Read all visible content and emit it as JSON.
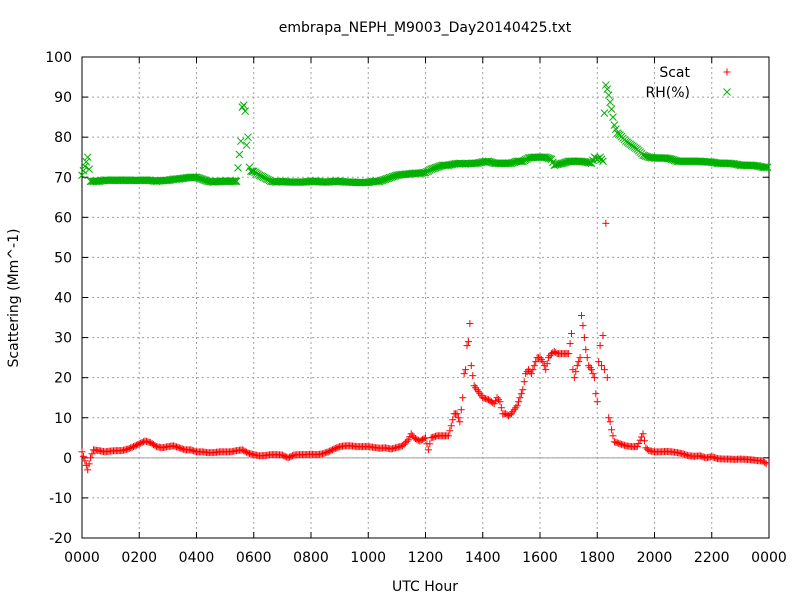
{
  "chart_data": {
    "type": "scatter",
    "title": "embrapa_NEPH_M9003_Day20140425.txt",
    "xlabel": "UTC Hour",
    "ylabel": "Scattering (Mm^-1)",
    "xlim": [
      0,
      2400
    ],
    "ylim": [
      -20,
      100
    ],
    "grid": true,
    "legend_position": "top-right",
    "x_ticks": [
      "0000",
      "0200",
      "0400",
      "0600",
      "0800",
      "1000",
      "1200",
      "1400",
      "1600",
      "1800",
      "2000",
      "2200",
      "0000"
    ],
    "y_ticks": [
      "-20",
      "-10",
      "0",
      "10",
      "20",
      "30",
      "40",
      "50",
      "60",
      "70",
      "80",
      "90",
      "100"
    ],
    "series": [
      {
        "name": "Scat",
        "marker": "+",
        "color": "#ff0000",
        "points": [
          [
            0,
            1.5
          ],
          [
            20,
            -3
          ],
          [
            30,
            0
          ],
          [
            40,
            2
          ],
          [
            60,
            1.8
          ],
          [
            80,
            1.5
          ],
          [
            100,
            1.7
          ],
          [
            120,
            1.8
          ],
          [
            140,
            1.8
          ],
          [
            160,
            2.2
          ],
          [
            180,
            2.8
          ],
          [
            200,
            3.5
          ],
          [
            220,
            4.2
          ],
          [
            240,
            3.8
          ],
          [
            260,
            2.8
          ],
          [
            280,
            2.5
          ],
          [
            300,
            2.8
          ],
          [
            320,
            3
          ],
          [
            340,
            2.5
          ],
          [
            360,
            2
          ],
          [
            380,
            2
          ],
          [
            400,
            1.5
          ],
          [
            420,
            1.5
          ],
          [
            440,
            1.3
          ],
          [
            460,
            1.3
          ],
          [
            480,
            1.5
          ],
          [
            500,
            1.5
          ],
          [
            520,
            1.5
          ],
          [
            540,
            1.8
          ],
          [
            560,
            2
          ],
          [
            580,
            1.2
          ],
          [
            600,
            0.8
          ],
          [
            620,
            0.5
          ],
          [
            640,
            0.6
          ],
          [
            660,
            0.8
          ],
          [
            680,
            0.8
          ],
          [
            700,
            0.7
          ],
          [
            720,
            0
          ],
          [
            740,
            0.7
          ],
          [
            760,
            0.8
          ],
          [
            780,
            0.8
          ],
          [
            800,
            0.9
          ],
          [
            820,
            0.8
          ],
          [
            840,
            1
          ],
          [
            860,
            1.5
          ],
          [
            880,
            2.2
          ],
          [
            900,
            2.8
          ],
          [
            920,
            3
          ],
          [
            940,
            3
          ],
          [
            960,
            2.8
          ],
          [
            980,
            2.8
          ],
          [
            1000,
            2.8
          ],
          [
            1020,
            2.6
          ],
          [
            1040,
            2.4
          ],
          [
            1060,
            2.5
          ],
          [
            1080,
            2.2
          ],
          [
            1100,
            2.6
          ],
          [
            1120,
            3
          ],
          [
            1140,
            4.5
          ],
          [
            1150,
            6
          ],
          [
            1160,
            5
          ],
          [
            1180,
            4.2
          ],
          [
            1200,
            5
          ],
          [
            1210,
            2
          ],
          [
            1220,
            5
          ],
          [
            1240,
            5.5
          ],
          [
            1260,
            5.5
          ],
          [
            1280,
            5.5
          ],
          [
            1290,
            8
          ],
          [
            1300,
            11
          ],
          [
            1310,
            11
          ],
          [
            1320,
            9
          ],
          [
            1330,
            15
          ],
          [
            1335,
            21
          ],
          [
            1340,
            22
          ],
          [
            1345,
            28
          ],
          [
            1350,
            29
          ],
          [
            1355,
            33.5
          ],
          [
            1360,
            23
          ],
          [
            1370,
            18
          ],
          [
            1380,
            17
          ],
          [
            1390,
            16
          ],
          [
            1400,
            15
          ],
          [
            1420,
            14.5
          ],
          [
            1440,
            13.5
          ],
          [
            1450,
            15
          ],
          [
            1460,
            14
          ],
          [
            1470,
            11
          ],
          [
            1480,
            11
          ],
          [
            1490,
            10.5
          ],
          [
            1500,
            11
          ],
          [
            1510,
            12
          ],
          [
            1520,
            13
          ],
          [
            1530,
            15
          ],
          [
            1540,
            17
          ],
          [
            1550,
            21
          ],
          [
            1560,
            22
          ],
          [
            1570,
            21
          ],
          [
            1580,
            23
          ],
          [
            1590,
            25
          ],
          [
            1600,
            25
          ],
          [
            1610,
            24
          ],
          [
            1620,
            22
          ],
          [
            1630,
            25
          ],
          [
            1640,
            26
          ],
          [
            1650,
            26.5
          ],
          [
            1660,
            26
          ],
          [
            1680,
            26
          ],
          [
            1700,
            26
          ],
          [
            1710,
            31
          ],
          [
            1715,
            22
          ],
          [
            1720,
            20
          ],
          [
            1730,
            23
          ],
          [
            1740,
            25
          ],
          [
            1745,
            35.5
          ],
          [
            1750,
            33
          ],
          [
            1760,
            27
          ],
          [
            1770,
            23
          ],
          [
            1780,
            22
          ],
          [
            1790,
            20
          ],
          [
            1795,
            16
          ],
          [
            1800,
            14
          ],
          [
            1805,
            24
          ],
          [
            1810,
            28
          ],
          [
            1815,
            23
          ],
          [
            1820,
            30.5
          ],
          [
            1825,
            22
          ],
          [
            1830,
            58.5
          ],
          [
            1835,
            20
          ],
          [
            1840,
            10
          ],
          [
            1845,
            9
          ],
          [
            1850,
            7
          ],
          [
            1860,
            4
          ],
          [
            1880,
            3.5
          ],
          [
            1900,
            3
          ],
          [
            1920,
            2.8
          ],
          [
            1940,
            2.8
          ],
          [
            1960,
            6
          ],
          [
            1970,
            2.5
          ],
          [
            1980,
            1.8
          ],
          [
            2000,
            1.5
          ],
          [
            2020,
            1.5
          ],
          [
            2040,
            1.6
          ],
          [
            2060,
            1.5
          ],
          [
            2080,
            1.3
          ],
          [
            2100,
            1
          ],
          [
            2120,
            0.5
          ],
          [
            2140,
            0.4
          ],
          [
            2160,
            0.5
          ],
          [
            2180,
            0
          ],
          [
            2200,
            0.3
          ],
          [
            2220,
            -0.2
          ],
          [
            2240,
            -0.3
          ],
          [
            2260,
            -0.3
          ],
          [
            2280,
            -0.4
          ],
          [
            2300,
            -0.3
          ],
          [
            2320,
            -0.4
          ],
          [
            2340,
            -0.5
          ],
          [
            2360,
            -0.7
          ],
          [
            2380,
            -0.8
          ],
          [
            2390,
            -1.5
          ]
        ]
      },
      {
        "name": "RH(%)",
        "marker": "x",
        "color": "#00b000",
        "points": [
          [
            0,
            70.5
          ],
          [
            20,
            75
          ],
          [
            30,
            69
          ],
          [
            40,
            69
          ],
          [
            60,
            69
          ],
          [
            80,
            69.3
          ],
          [
            100,
            69.2
          ],
          [
            120,
            69.3
          ],
          [
            140,
            69.2
          ],
          [
            160,
            69.3
          ],
          [
            180,
            69.2
          ],
          [
            200,
            69.2
          ],
          [
            220,
            69.3
          ],
          [
            240,
            69.2
          ],
          [
            260,
            69
          ],
          [
            280,
            69.2
          ],
          [
            300,
            69.2
          ],
          [
            320,
            69.5
          ],
          [
            340,
            69.6
          ],
          [
            360,
            69.8
          ],
          [
            380,
            70
          ],
          [
            400,
            70
          ],
          [
            420,
            69.5
          ],
          [
            440,
            69
          ],
          [
            460,
            68.8
          ],
          [
            480,
            69
          ],
          [
            500,
            69
          ],
          [
            520,
            69
          ],
          [
            540,
            69
          ],
          [
            555,
            79
          ],
          [
            560,
            87.5
          ],
          [
            565,
            88
          ],
          [
            570,
            86.5
          ],
          [
            575,
            78
          ],
          [
            580,
            80
          ],
          [
            585,
            72.5
          ],
          [
            590,
            71.5
          ],
          [
            600,
            71.5
          ],
          [
            620,
            70.5
          ],
          [
            640,
            69.8
          ],
          [
            660,
            69
          ],
          [
            680,
            68.8
          ],
          [
            700,
            69
          ],
          [
            720,
            68.8
          ],
          [
            740,
            68.8
          ],
          [
            760,
            68.8
          ],
          [
            780,
            68.8
          ],
          [
            800,
            69
          ],
          [
            820,
            69
          ],
          [
            840,
            68.8
          ],
          [
            860,
            68.8
          ],
          [
            880,
            69
          ],
          [
            900,
            69
          ],
          [
            920,
            68.8
          ],
          [
            940,
            68.8
          ],
          [
            960,
            68.7
          ],
          [
            980,
            68.7
          ],
          [
            1000,
            68.7
          ],
          [
            1020,
            69
          ],
          [
            1040,
            69
          ],
          [
            1060,
            69.5
          ],
          [
            1080,
            70
          ],
          [
            1100,
            70.5
          ],
          [
            1120,
            70.7
          ],
          [
            1140,
            70.8
          ],
          [
            1160,
            71
          ],
          [
            1180,
            71
          ],
          [
            1200,
            71.2
          ],
          [
            1220,
            72
          ],
          [
            1240,
            72.5
          ],
          [
            1260,
            73
          ],
          [
            1280,
            73
          ],
          [
            1300,
            73.3
          ],
          [
            1320,
            73.5
          ],
          [
            1340,
            73.3
          ],
          [
            1360,
            73.5
          ],
          [
            1380,
            73.5
          ],
          [
            1400,
            73.8
          ],
          [
            1420,
            74
          ],
          [
            1440,
            73.5
          ],
          [
            1460,
            73.5
          ],
          [
            1480,
            73.5
          ],
          [
            1500,
            73.5
          ],
          [
            1520,
            74
          ],
          [
            1540,
            74
          ],
          [
            1560,
            74.8
          ],
          [
            1580,
            75
          ],
          [
            1600,
            75
          ],
          [
            1620,
            75
          ],
          [
            1640,
            74.5
          ],
          [
            1650,
            73
          ],
          [
            1660,
            73.2
          ],
          [
            1680,
            73.5
          ],
          [
            1700,
            74
          ],
          [
            1720,
            74
          ],
          [
            1740,
            74
          ],
          [
            1760,
            73.8
          ],
          [
            1780,
            73.5
          ],
          [
            1790,
            75
          ],
          [
            1800,
            74.5
          ],
          [
            1810,
            75
          ],
          [
            1820,
            74
          ],
          [
            1825,
            86
          ],
          [
            1830,
            93
          ],
          [
            1835,
            92
          ],
          [
            1840,
            90.5
          ],
          [
            1850,
            87
          ],
          [
            1860,
            83
          ],
          [
            1870,
            81
          ],
          [
            1880,
            80.5
          ],
          [
            1900,
            79
          ],
          [
            1920,
            78
          ],
          [
            1940,
            77
          ],
          [
            1960,
            75.5
          ],
          [
            1980,
            75
          ],
          [
            2000,
            74.8
          ],
          [
            2020,
            74.8
          ],
          [
            2040,
            74.8
          ],
          [
            2060,
            74.5
          ],
          [
            2080,
            74
          ],
          [
            2100,
            74
          ],
          [
            2120,
            74
          ],
          [
            2140,
            74
          ],
          [
            2160,
            74
          ],
          [
            2180,
            73.8
          ],
          [
            2200,
            73.8
          ],
          [
            2220,
            73.5
          ],
          [
            2240,
            73.5
          ],
          [
            2260,
            73.5
          ],
          [
            2280,
            73.3
          ],
          [
            2300,
            73
          ],
          [
            2320,
            73
          ],
          [
            2340,
            73
          ],
          [
            2360,
            72.8
          ],
          [
            2380,
            72.5
          ],
          [
            2395,
            72.5
          ]
        ]
      }
    ]
  }
}
